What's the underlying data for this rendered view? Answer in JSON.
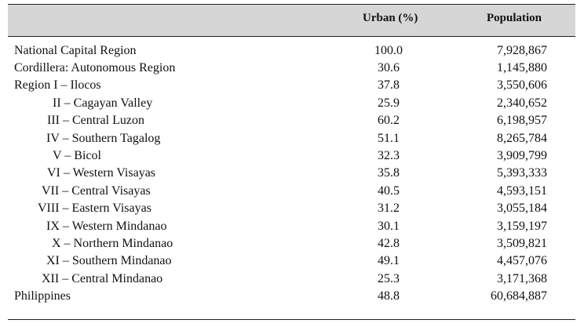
{
  "headers": {
    "urban": "Urban (%)",
    "population": "Population"
  },
  "rows": [
    {
      "region": "National Capital Region",
      "urban": "100.0",
      "population": "7,928,867"
    },
    {
      "region": "Cordillera: Autonomous Region",
      "urban": "30.6",
      "population": "1,145,880"
    },
    {
      "region": "Region I – Ilocos",
      "urban": "37.8",
      "population": "3,550,606"
    },
    {
      "region": "II – Cagayan Valley",
      "urban": "25.9",
      "population": "2,340,652"
    },
    {
      "region": "III – Central Luzon",
      "urban": "60.2",
      "population": "6,198,957"
    },
    {
      "region": "IV – Southern Tagalog",
      "urban": "51.1",
      "population": "8,265,784"
    },
    {
      "region": "V – Bicol",
      "urban": "32.3",
      "population": "3,909,799"
    },
    {
      "region": "VI – Western Visayas",
      "urban": "35.8",
      "population": "5,393,333"
    },
    {
      "region": "VII – Central Visayas",
      "urban": "40.5",
      "population": "4,593,151"
    },
    {
      "region": "VIII – Eastern Visayas",
      "urban": "31.2",
      "population": "3,055,184"
    },
    {
      "region": "IX – Western Mindanao",
      "urban": "30.1",
      "population": "3,159,197"
    },
    {
      "region": "X – Northern Mindanao",
      "urban": "42.8",
      "population": "3,509,821"
    },
    {
      "region": "XI – Southern Mindanao",
      "urban": "49.1",
      "population": "4,457,076"
    },
    {
      "region": "XII – Central Mindanao",
      "urban": "25.3",
      "population": "3,171,368"
    },
    {
      "region": "Philippines",
      "urban": "48.8",
      "population": "60,684,887"
    }
  ]
}
